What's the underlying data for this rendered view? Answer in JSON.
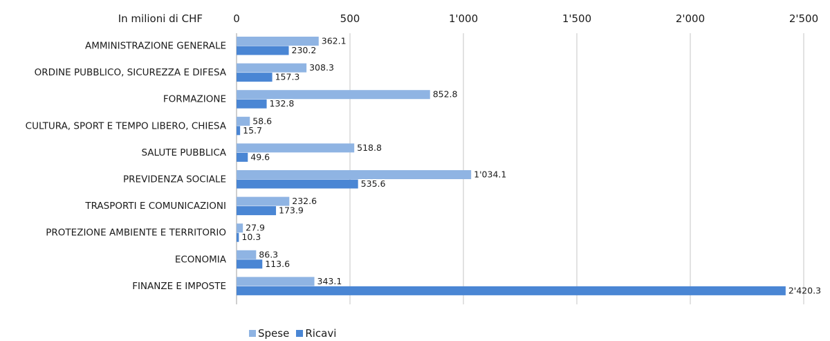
{
  "chart_data": {
    "type": "bar",
    "orientation": "horizontal",
    "unit_label": "In milioni di CHF",
    "categories": [
      "AMMINISTRAZIONE GENERALE",
      "ORDINE PUBBLICO, SICUREZZA E DIFESA",
      "FORMAZIONE",
      "CULTURA, SPORT E TEMPO LIBERO, CHIESA",
      "SALUTE PUBBLICA",
      "PREVIDENZA SOCIALE",
      "TRASPORTI E COMUNICAZIONI",
      "PROTEZIONE AMBIENTE E TERRITORIO",
      "ECONOMIA",
      "FINANZE E IMPOSTE"
    ],
    "series": [
      {
        "name": "Spese",
        "color": "#8fb4e3",
        "values": [
          362.1,
          308.3,
          852.8,
          58.6,
          518.8,
          1034.1,
          232.6,
          27.9,
          86.3,
          343.1
        ],
        "labels": [
          "362.1",
          "308.3",
          "852.8",
          "58.6",
          "518.8",
          "1'034.1",
          "232.6",
          "27.9",
          "86.3",
          "343.1"
        ]
      },
      {
        "name": "Ricavi",
        "color": "#4a86d4",
        "values": [
          230.2,
          157.3,
          132.8,
          15.7,
          49.6,
          535.6,
          173.9,
          10.3,
          113.6,
          2420.3
        ],
        "labels": [
          "230.2",
          "157.3",
          "132.8",
          "15.7",
          "49.6",
          "535.6",
          "173.9",
          "10.3",
          "113.6",
          "2'420.3"
        ]
      }
    ],
    "xlim": [
      0,
      2500
    ],
    "ticks": [
      0,
      500,
      1000,
      1500,
      2000,
      2500
    ],
    "tick_labels": [
      "0",
      "500",
      "1'000",
      "1'500",
      "2'000",
      "2'500"
    ],
    "axis_position": "top",
    "grid": true,
    "legend_position": "bottom"
  }
}
